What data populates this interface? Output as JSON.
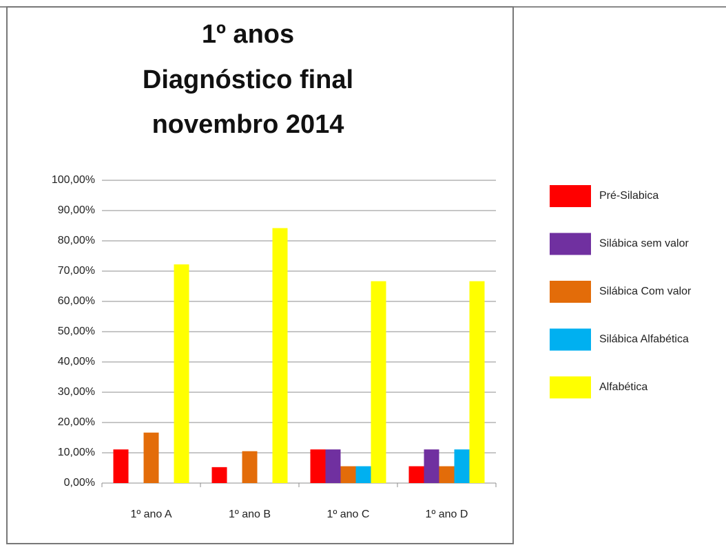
{
  "chart_data": {
    "type": "bar",
    "title": [
      "1º anos",
      "Diagnóstico final",
      "novembro 2014"
    ],
    "categories": [
      "1º ano A",
      "1º ano B",
      "1º ano C",
      "1º ano D"
    ],
    "series": [
      {
        "name": "Pré-Silabica",
        "color": "#ff0000",
        "values": [
          11.11,
          5.26,
          11.11,
          5.56
        ]
      },
      {
        "name": "Silábica sem valor",
        "color": "#7030a0",
        "values": [
          0,
          0,
          11.11,
          11.11
        ]
      },
      {
        "name": "Silábica Com valor",
        "color": "#e36c09",
        "values": [
          16.67,
          10.53,
          5.56,
          5.56
        ]
      },
      {
        "name": "Silábica Alfabética",
        "color": "#00b0f0",
        "values": [
          0,
          0,
          5.56,
          11.11
        ]
      },
      {
        "name": "Alfabética",
        "color": "#ffff00",
        "values": [
          72.22,
          84.21,
          66.67,
          66.67
        ]
      }
    ],
    "ylim": [
      0,
      100
    ],
    "yticks": [
      {
        "value": 0,
        "label": "0,00%"
      },
      {
        "value": 10,
        "label": "10,00%"
      },
      {
        "value": 20,
        "label": "20,00%"
      },
      {
        "value": 30,
        "label": "30,00%"
      },
      {
        "value": 40,
        "label": "40,00%"
      },
      {
        "value": 50,
        "label": "50,00%"
      },
      {
        "value": 60,
        "label": "60,00%"
      },
      {
        "value": 70,
        "label": "70,00%"
      },
      {
        "value": 80,
        "label": "80,00%"
      },
      {
        "value": 90,
        "label": "90,00%"
      },
      {
        "value": 100,
        "label": "100,00%"
      }
    ],
    "grid": true,
    "legend": "right"
  }
}
